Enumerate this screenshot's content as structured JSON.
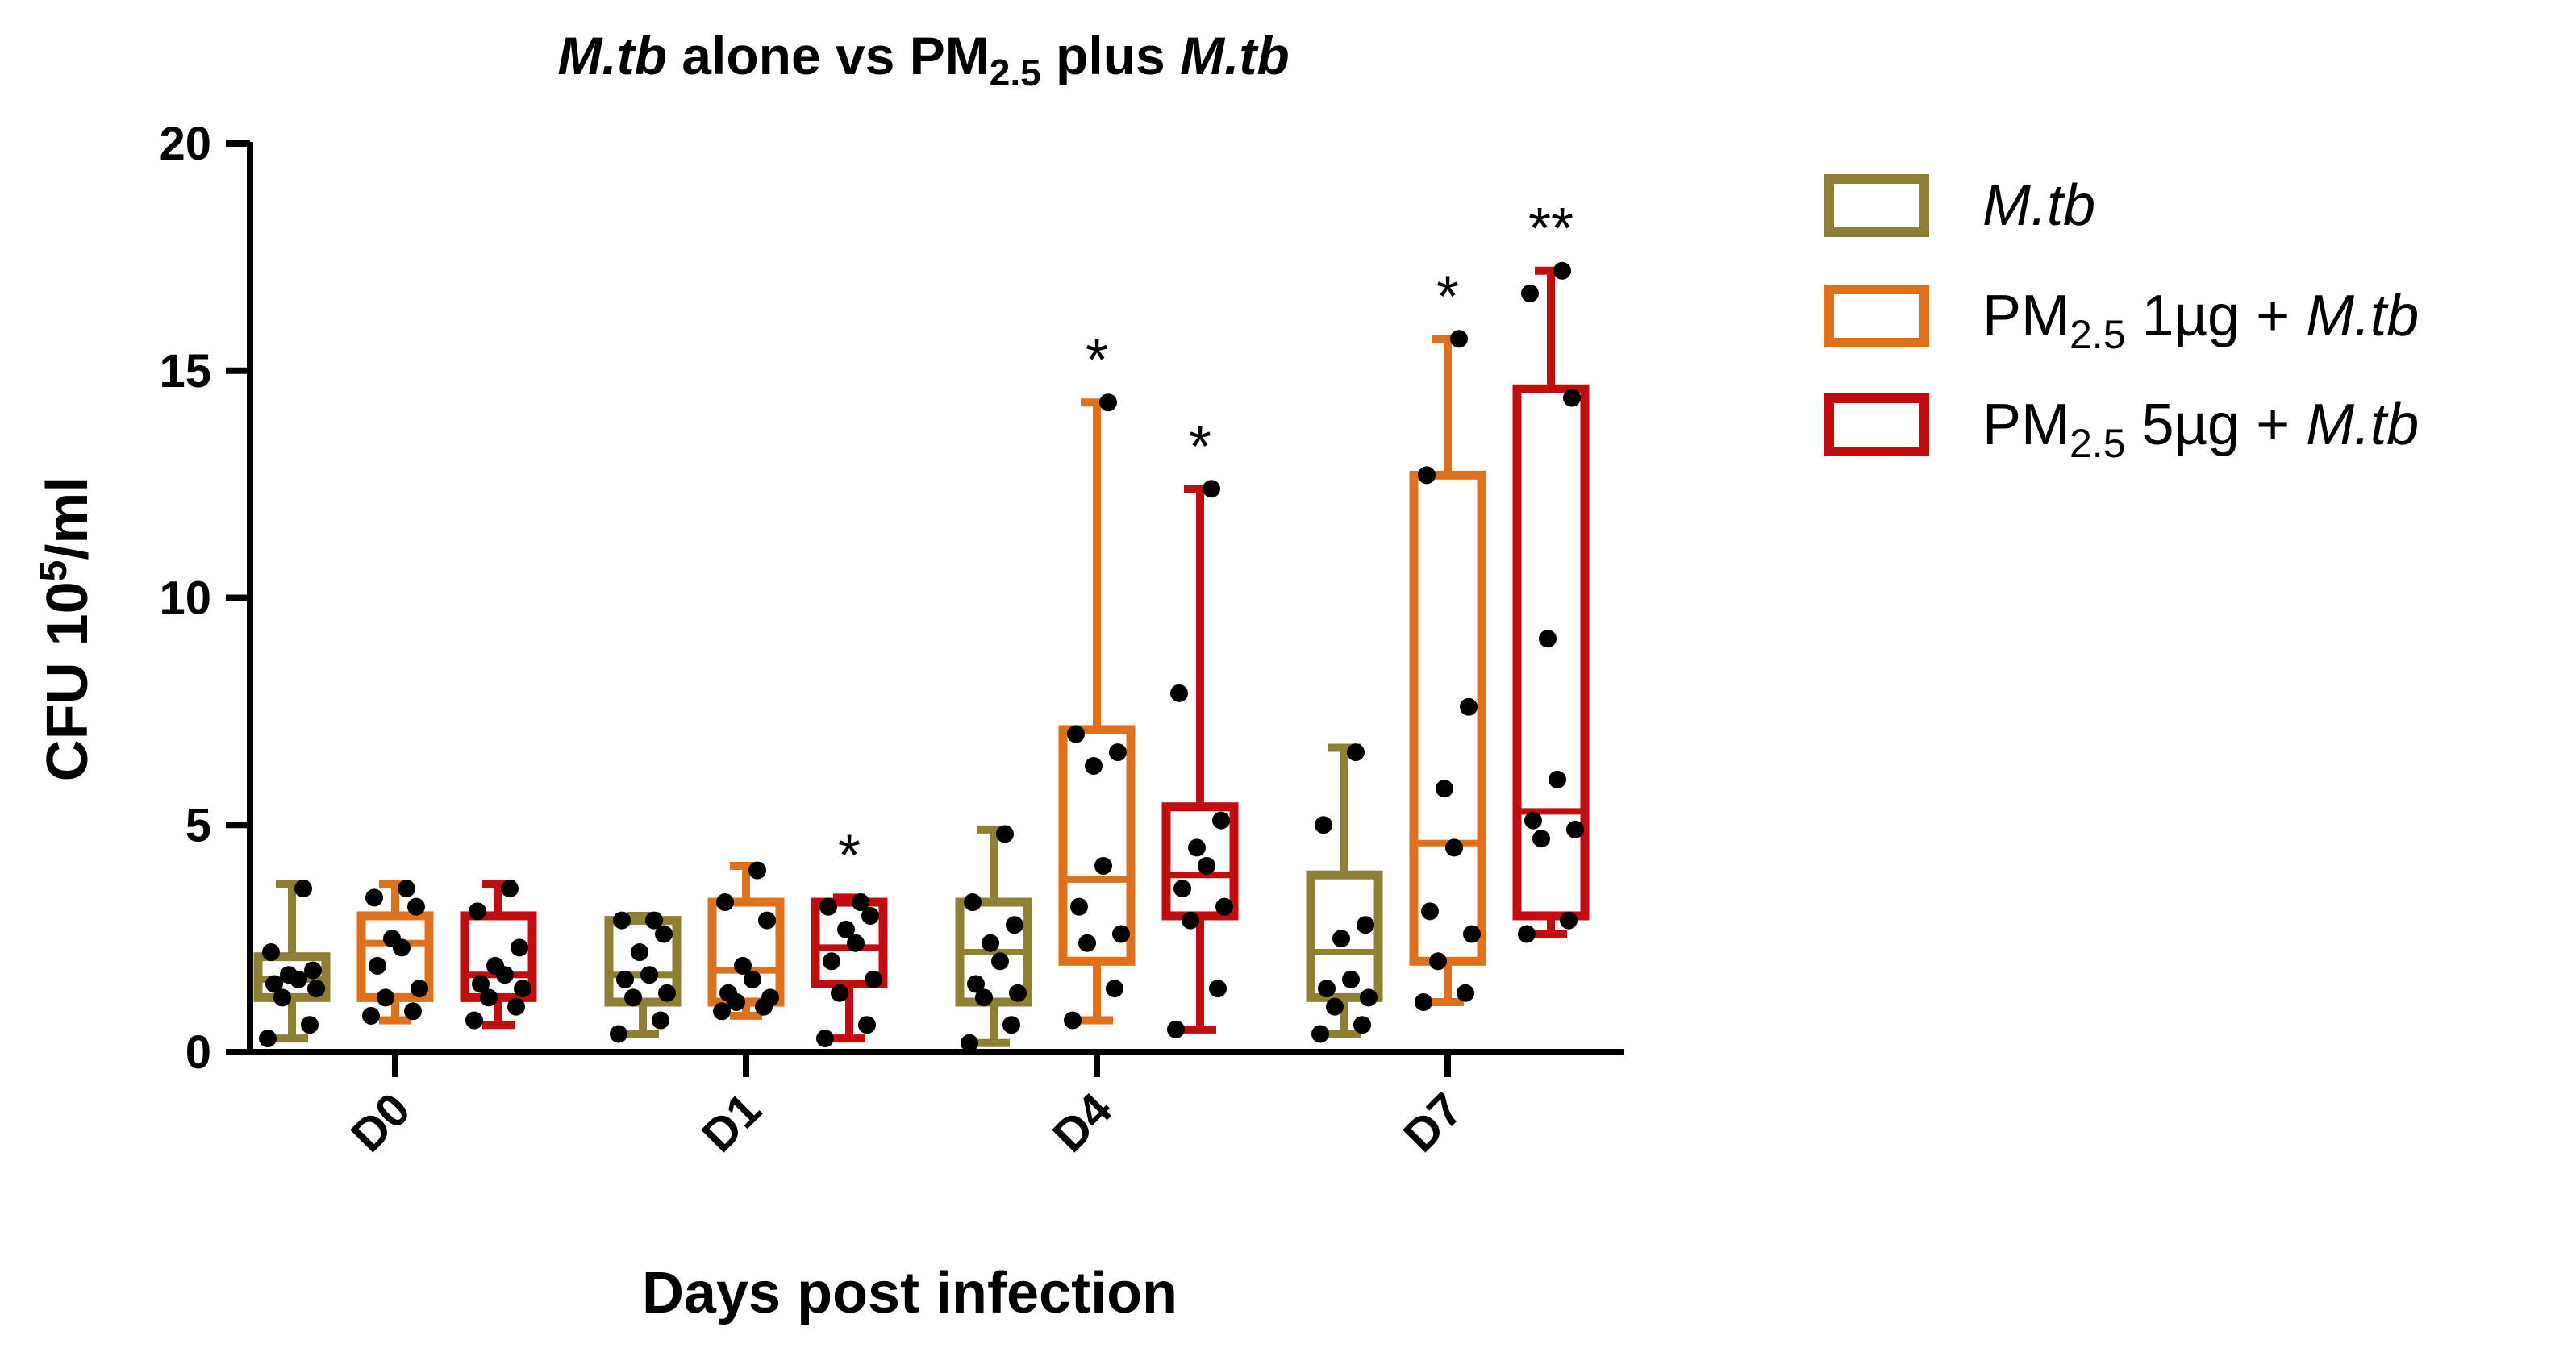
{
  "chart_data": {
    "type": "box",
    "title": {
      "part1": "M.tb",
      "part2": " alone vs PM",
      "part3": "2.5",
      "part4": " plus ",
      "part5": "M.tb"
    },
    "xlabel": "Days post infection",
    "ylabel": {
      "main": "CFU 10",
      "sup": "5",
      "tail": "/ml"
    },
    "ylim": [
      0,
      20
    ],
    "yticks": [
      "0",
      "5",
      "10",
      "15",
      "20"
    ],
    "categories": [
      "D0",
      "D1",
      "D4",
      "D7"
    ],
    "series": [
      {
        "name": "M.tb",
        "legend": {
          "a": "M.tb",
          "sub": "",
          "b": "",
          "c": ""
        },
        "color": "#8f7f33",
        "boxes": [
          {
            "min": 0.3,
            "q1": 1.2,
            "median": 1.6,
            "q3": 2.1,
            "max": 3.7,
            "points": [
              0.3,
              0.6,
              1.2,
              1.4,
              1.5,
              1.6,
              1.7,
              1.8,
              2.2,
              3.6
            ],
            "sig": ""
          },
          {
            "min": 0.4,
            "q1": 1.1,
            "median": 1.7,
            "q3": 2.9,
            "max": 3.0,
            "points": [
              0.4,
              0.7,
              1.2,
              1.3,
              1.6,
              1.7,
              2.2,
              2.6,
              2.9,
              2.9
            ],
            "sig": ""
          },
          {
            "min": 0.2,
            "q1": 1.1,
            "median": 2.2,
            "q3": 3.3,
            "max": 4.9,
            "points": [
              0.2,
              0.6,
              1.2,
              1.3,
              1.5,
              2.0,
              2.4,
              2.8,
              3.3,
              4.8
            ],
            "sig": ""
          },
          {
            "min": 0.4,
            "q1": 1.2,
            "median": 2.2,
            "q3": 3.9,
            "max": 6.7,
            "points": [
              0.4,
              0.6,
              1.0,
              1.2,
              1.4,
              1.6,
              2.5,
              2.8,
              5.0,
              6.6
            ],
            "sig": ""
          }
        ]
      },
      {
        "name": "PM2.5 1µg + M.tb",
        "legend": {
          "a": "PM",
          "sub": "2.5",
          "b": " 1µg + ",
          "c": "M.tb"
        },
        "color": "#e0711c",
        "boxes": [
          {
            "min": 0.7,
            "q1": 1.2,
            "median": 2.4,
            "q3": 3.0,
            "max": 3.7,
            "points": [
              0.8,
              0.9,
              1.2,
              1.4,
              1.9,
              2.3,
              2.5,
              3.2,
              3.4,
              3.6
            ],
            "sig": ""
          },
          {
            "min": 0.8,
            "q1": 1.1,
            "median": 1.8,
            "q3": 3.3,
            "max": 4.1,
            "points": [
              0.9,
              1.0,
              1.1,
              1.2,
              1.3,
              1.6,
              1.9,
              2.9,
              3.3,
              4.0
            ],
            "sig": ""
          },
          {
            "min": 0.7,
            "q1": 2.0,
            "median": 3.8,
            "q3": 7.1,
            "max": 14.3,
            "points": [
              0.7,
              1.4,
              2.4,
              2.6,
              3.2,
              4.1,
              6.3,
              6.6,
              7.0,
              14.3
            ],
            "sig": "*"
          },
          {
            "min": 1.1,
            "q1": 2.0,
            "median": 4.6,
            "q3": 12.7,
            "max": 15.7,
            "points": [
              1.1,
              1.3,
              2.0,
              2.6,
              3.1,
              4.5,
              5.8,
              7.6,
              12.7,
              15.7
            ],
            "sig": "*"
          }
        ]
      },
      {
        "name": "PM2.5 5µg + M.tb",
        "legend": {
          "a": "PM",
          "sub": "2.5",
          "b": " 5µg + ",
          "c": "M.tb"
        },
        "color": "#c00d0d",
        "boxes": [
          {
            "min": 0.6,
            "q1": 1.2,
            "median": 1.7,
            "q3": 3.0,
            "max": 3.7,
            "points": [
              0.7,
              1.0,
              1.2,
              1.4,
              1.5,
              1.7,
              1.9,
              2.3,
              3.1,
              3.6
            ],
            "sig": ""
          },
          {
            "min": 0.3,
            "q1": 1.5,
            "median": 2.3,
            "q3": 3.3,
            "max": 3.4,
            "points": [
              0.3,
              0.6,
              1.3,
              1.6,
              2.0,
              2.4,
              2.7,
              3.0,
              3.2,
              3.3
            ],
            "sig": "*"
          },
          {
            "min": 0.5,
            "q1": 3.0,
            "median": 3.9,
            "q3": 5.4,
            "max": 12.4,
            "points": [
              0.5,
              1.4,
              2.9,
              3.2,
              3.6,
              4.1,
              4.5,
              5.1,
              7.9,
              12.4
            ],
            "sig": "*"
          },
          {
            "min": 2.6,
            "q1": 3.0,
            "median": 5.3,
            "q3": 14.6,
            "max": 17.2,
            "points": [
              2.6,
              2.9,
              4.7,
              4.9,
              5.1,
              6.0,
              9.1,
              14.4,
              16.7,
              17.2
            ],
            "sig": "**"
          }
        ]
      }
    ]
  }
}
